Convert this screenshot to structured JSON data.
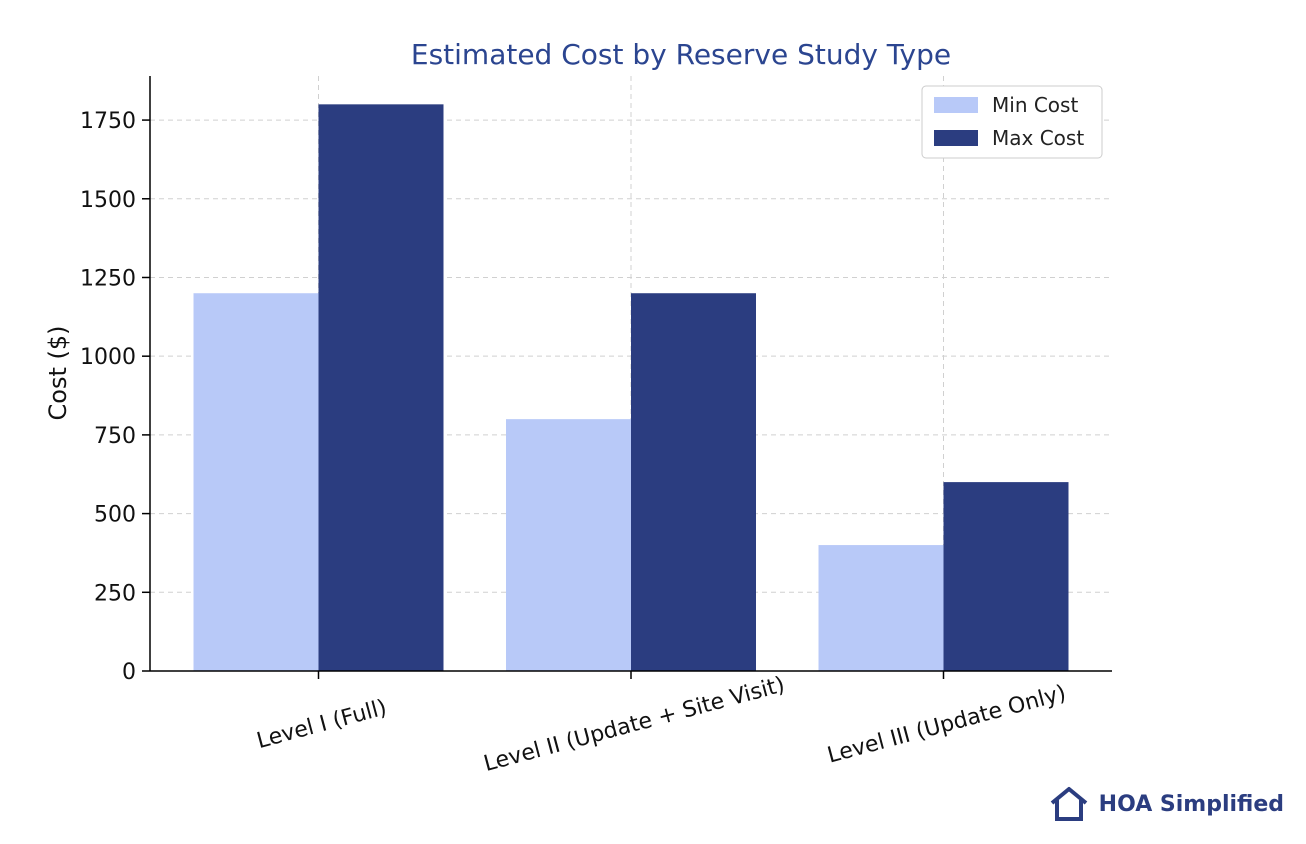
{
  "chart_data": {
    "type": "bar",
    "title": "Estimated Cost by Reserve Study Type",
    "xlabel": "",
    "ylabel": "Cost ($)",
    "categories": [
      "Level I (Full)",
      "Level II (Update + Site Visit)",
      "Level III (Update Only)"
    ],
    "series": [
      {
        "name": "Min Cost",
        "values": [
          1200,
          800,
          400
        ],
        "color": "#b8c9f8"
      },
      {
        "name": "Max Cost",
        "values": [
          1800,
          1200,
          600
        ],
        "color": "#2b3d80"
      }
    ],
    "ylim": [
      0,
      1890
    ],
    "yticks": [
      0,
      250,
      500,
      750,
      1000,
      1250,
      1500,
      1750
    ],
    "grid": true,
    "legend_position": "top-right"
  },
  "colors": {
    "title": "#2b4590",
    "grid": "#d0d0d0",
    "brand": "#2b3d80"
  },
  "brand": {
    "name": "HOA Simplified",
    "icon": "house-icon"
  }
}
